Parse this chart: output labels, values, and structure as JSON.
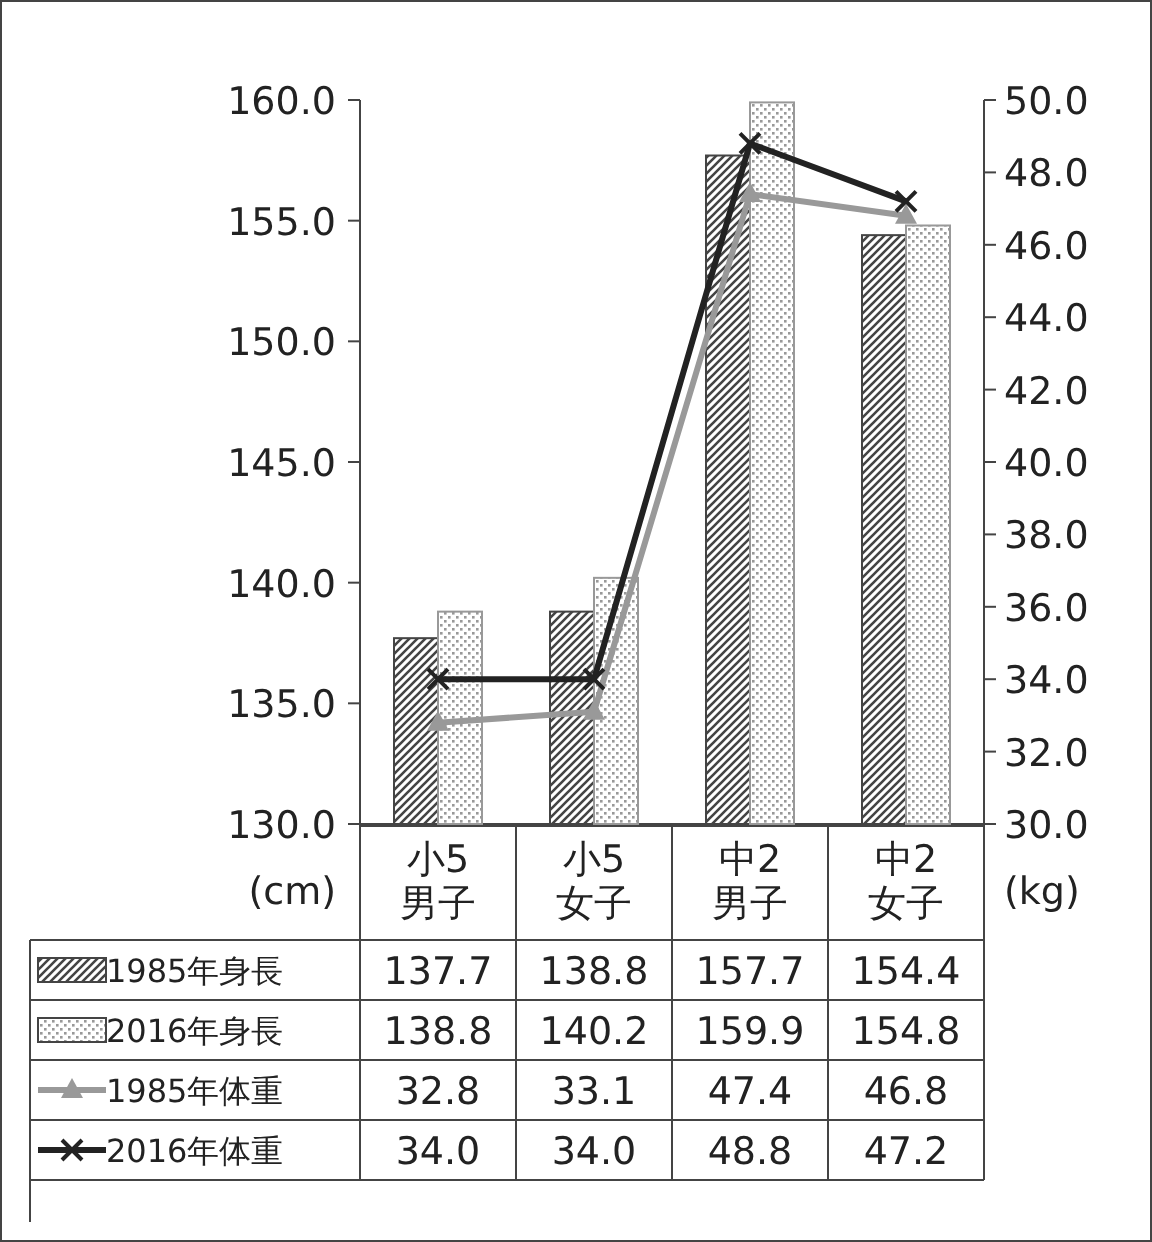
{
  "chart_data": {
    "type": "bar",
    "categories": [
      "小5\n男子",
      "小5\n女子",
      "中2\n男子",
      "中2\n女子"
    ],
    "ylabel": "(cm)",
    "y2label": "(kg)",
    "ylim": [
      130,
      160
    ],
    "yticks": [
      {
        "value": 130,
        "label": "130.0"
      },
      {
        "value": 135,
        "label": "135.0"
      },
      {
        "value": 140,
        "label": "140.0"
      },
      {
        "value": 145,
        "label": "145.0"
      },
      {
        "value": 150,
        "label": "150.0"
      },
      {
        "value": 155,
        "label": "155.0"
      },
      {
        "value": 160,
        "label": "160.0"
      }
    ],
    "y2lim": [
      30,
      50
    ],
    "y2ticks": [
      {
        "value": 30,
        "label": "30.0"
      },
      {
        "value": 32,
        "label": "32.0"
      },
      {
        "value": 34,
        "label": "34.0"
      },
      {
        "value": 36,
        "label": "36.0"
      },
      {
        "value": 38,
        "label": "38.0"
      },
      {
        "value": 40,
        "label": "40.0"
      },
      {
        "value": 42,
        "label": "42.0"
      },
      {
        "value": 44,
        "label": "44.0"
      },
      {
        "value": 46,
        "label": "46.0"
      },
      {
        "value": 48,
        "label": "48.0"
      },
      {
        "value": 50,
        "label": "50.0"
      }
    ],
    "legend": "bottom",
    "series": [
      {
        "name": "1985年身長",
        "type": "bar",
        "color": "#444444",
        "values": [
          137.7,
          138.8,
          157.7,
          154.4
        ],
        "value_labels": [
          "137.7",
          "138.8",
          "157.7",
          "154.4"
        ]
      },
      {
        "name": "2016年身長",
        "type": "bar",
        "color": "#999999",
        "values": [
          138.8,
          140.2,
          159.9,
          154.8
        ],
        "value_labels": [
          "138.8",
          "140.2",
          "159.9",
          "154.8"
        ]
      },
      {
        "name": "1985年体重",
        "type": "line",
        "axis": "y2",
        "color": "#999999",
        "marker": "triangle",
        "values": [
          32.8,
          33.1,
          47.4,
          46.8
        ],
        "value_labels": [
          "32.8",
          "33.1",
          "47.4",
          "46.8"
        ]
      },
      {
        "name": "2016年体重",
        "type": "line",
        "axis": "y2",
        "color": "#222222",
        "marker": "cross",
        "values": [
          34.0,
          34.0,
          48.8,
          47.2
        ],
        "value_labels": [
          "34.0",
          "34.0",
          "48.8",
          "47.2"
        ]
      }
    ]
  }
}
